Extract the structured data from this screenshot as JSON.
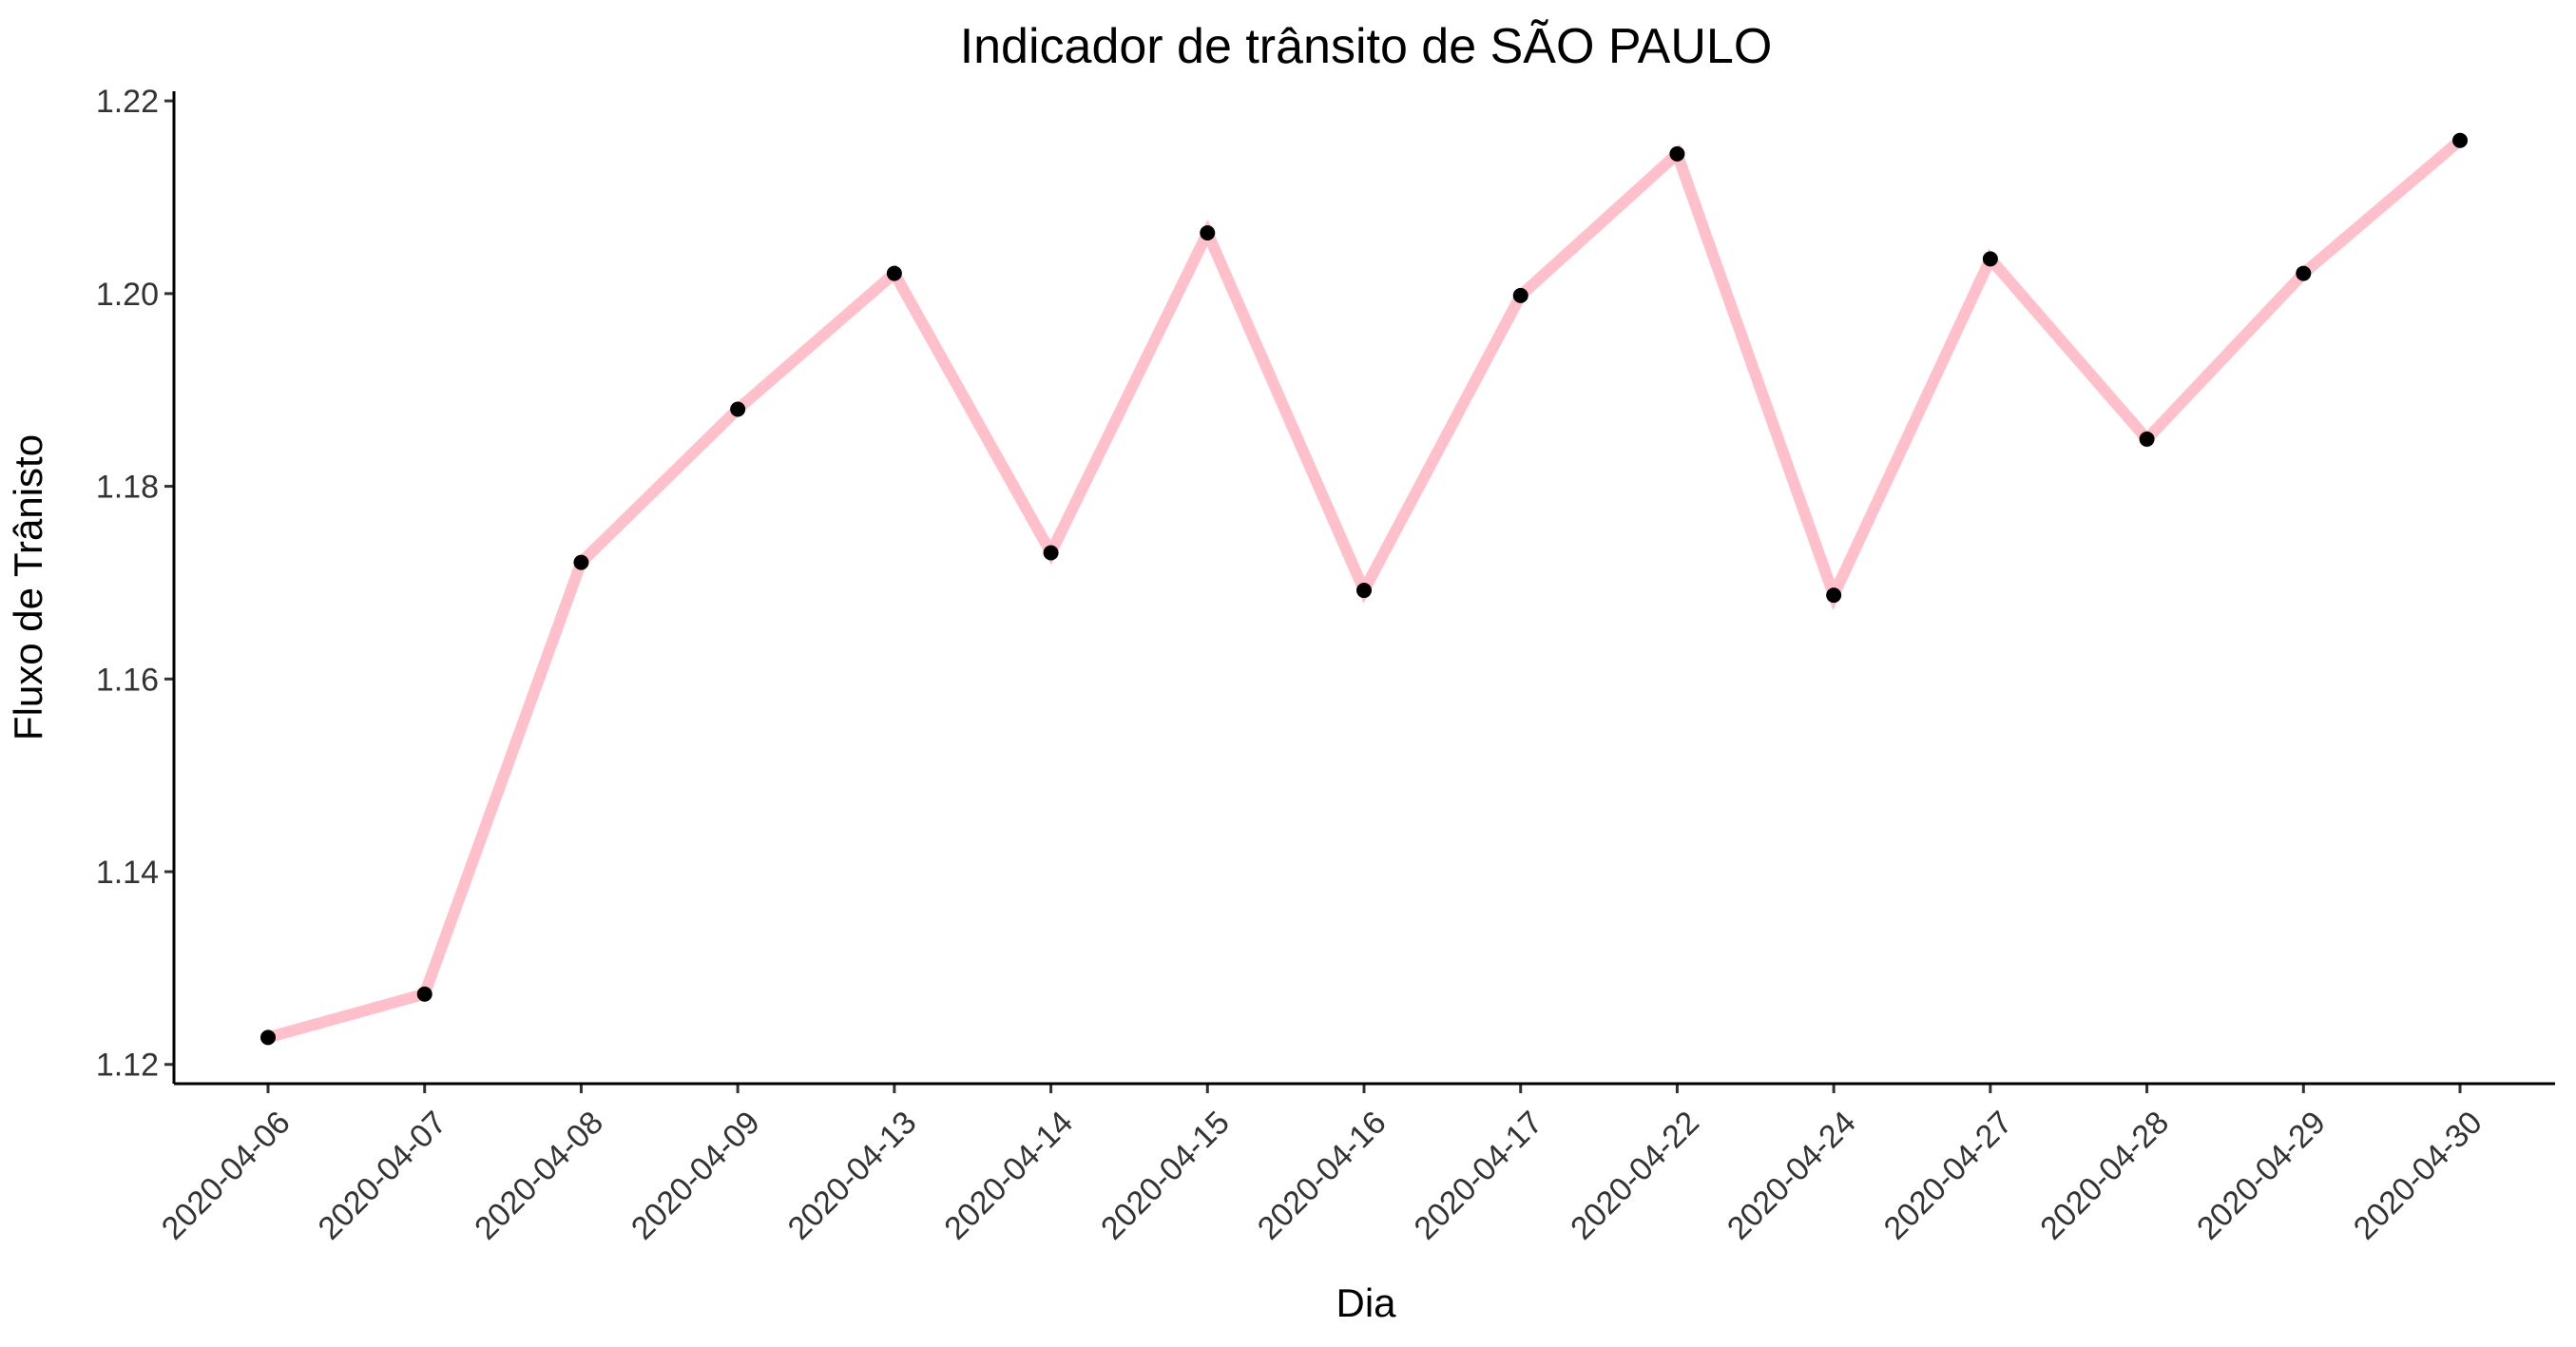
{
  "chart_data": {
    "type": "line",
    "title": "Indicador de trânsito de SÃO PAULO",
    "xlabel": "Dia",
    "ylabel": "Fluxo de Trânisto",
    "categories": [
      "2020-04-06",
      "2020-04-07",
      "2020-04-08",
      "2020-04-09",
      "2020-04-13",
      "2020-04-14",
      "2020-04-15",
      "2020-04-16",
      "2020-04-17",
      "2020-04-22",
      "2020-04-24",
      "2020-04-27",
      "2020-04-28",
      "2020-04-29",
      "2020-04-30"
    ],
    "values": [
      1.1228,
      1.1273,
      1.1721,
      1.188,
      1.2021,
      1.1731,
      1.2063,
      1.1692,
      1.1998,
      1.2145,
      1.1687,
      1.2036,
      1.1849,
      1.2021,
      1.2159
    ],
    "ylim": [
      1.118,
      1.221
    ],
    "yticks": [
      "1.12",
      "1.14",
      "1.16",
      "1.18",
      "1.20",
      "1.22"
    ],
    "grid": false,
    "legend": "none",
    "colors": {
      "line": "#FFC0CB",
      "points": "#000000"
    }
  }
}
